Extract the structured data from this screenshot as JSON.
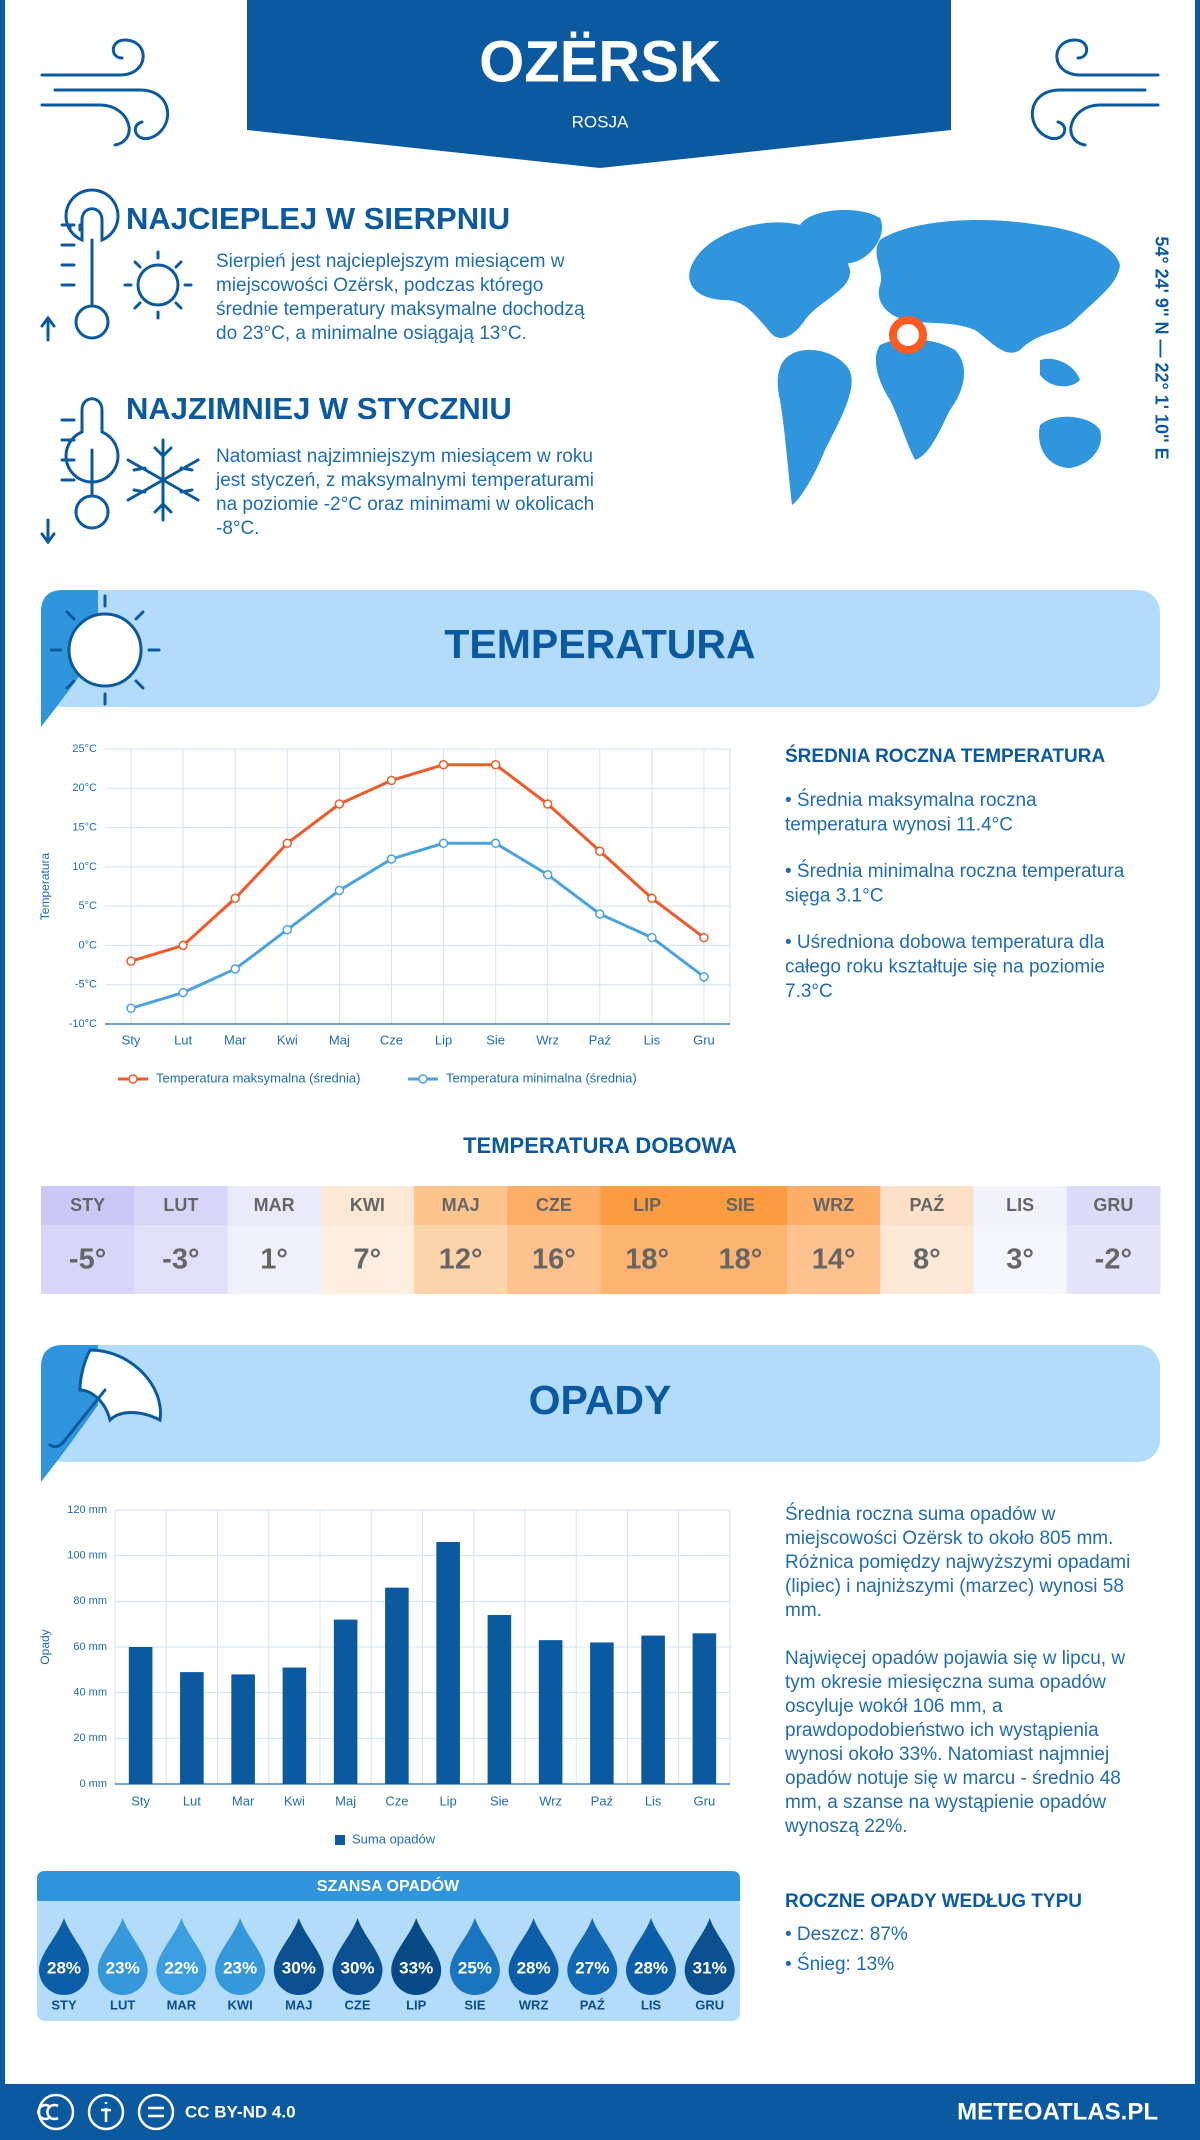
{
  "header": {
    "title": "OZËRSK",
    "subtitle": "ROSJA"
  },
  "coordinates": "54° 24' 9'' N — 22° 1' 10'' E",
  "warmest": {
    "title": "NAJCIEPLEJ W SIERPNIU",
    "text": [
      "Sierpień jest najcieplejszym miesiącem w",
      "miejscowości Ozërsk, podczas którego",
      "średnie temperatury maksymalne dochodzą",
      "do 23°C, a minimalne osiągają 13°C."
    ]
  },
  "coldest": {
    "title": "NAJZIMNIEJ W STYCZNIU",
    "text": [
      "Natomiast najzimniejszym miesiącem w roku",
      "jest styczeń, z maksymalnymi temperaturami",
      "na poziomie -2°C oraz minimami w okolicach",
      "-8°C."
    ]
  },
  "temperature_section": {
    "title": "TEMPERATURA",
    "summary_title": "ŚREDNIA ROCZNA TEMPERATURA",
    "bullets": [
      [
        "• Średnia maksymalna roczna",
        "temperatura wynosi 11.4°C"
      ],
      [
        "• Średnia minimalna roczna temperatura",
        "sięga 3.1°C"
      ],
      [
        "• Uśredniona dobowa temperatura dla",
        "całego roku kształtuje się na poziomie",
        "7.3°C"
      ]
    ]
  },
  "daily_temperature": {
    "title": "TEMPERATURA DOBOWA",
    "months": [
      "STY",
      "LUT",
      "MAR",
      "KWI",
      "MAJ",
      "CZE",
      "LIP",
      "SIE",
      "WRZ",
      "PAŹ",
      "LIS",
      "GRU"
    ],
    "values": [
      "-5°",
      "-3°",
      "1°",
      "7°",
      "12°",
      "16°",
      "18°",
      "18°",
      "14°",
      "8°",
      "3°",
      "-2°"
    ],
    "colors": [
      "#cbc8f6",
      "#d7d5f8",
      "#ebeafb",
      "#fde8d6",
      "#fdc58c",
      "#fdae68",
      "#fd9b40",
      "#fd9b40",
      "#fdae68",
      "#fde0c8",
      "#f2f2fb",
      "#dcdbf9"
    ]
  },
  "precipitation_section": {
    "title": "OPADY",
    "paragraphs": [
      [
        "Średnia roczna suma opadów w",
        "miejscowości Ozërsk to około 805 mm.",
        "Różnica pomiędzy najwyższymi opadami",
        "(lipiec) i najniższymi (marzec) wynosi 58",
        "mm."
      ],
      [
        "Najwięcej opadów pojawia się w lipcu, w",
        "tym okresie miesięczna suma opadów",
        "oscyluje wokół 106 mm, a",
        "prawdopodobieństwo ich wystąpienia",
        "wynosi około 33%. Natomiast najmniej",
        "opadów notuje się w marcu - średnio 48",
        "mm, a szanse na wystąpienie opadów",
        "wynoszą 22%."
      ]
    ],
    "type_title": "ROCZNE OPADY WEDŁUG TYPU",
    "types": [
      "• Deszcz: 87%",
      "• Śnieg: 13%"
    ]
  },
  "precipitation_chance": {
    "title": "SZANSA OPADÓW",
    "months": [
      "STY",
      "LUT",
      "MAR",
      "KWI",
      "MAJ",
      "CZE",
      "LIP",
      "SIE",
      "WRZ",
      "PAŹ",
      "LIS",
      "GRU"
    ],
    "values": [
      "28%",
      "23%",
      "22%",
      "23%",
      "30%",
      "30%",
      "33%",
      "25%",
      "28%",
      "27%",
      "28%",
      "31%"
    ],
    "colors": [
      "#0d5ea8",
      "#3498db",
      "#3a9ee0",
      "#3498db",
      "#0a4f90",
      "#0a4f90",
      "#074a87",
      "#1a75c0",
      "#0d5ea8",
      "#1368b3",
      "#0d5ea8",
      "#0a4f90"
    ]
  },
  "footer": {
    "license": "CC BY-ND 4.0",
    "site": "METEOATLAS.PL"
  },
  "chart_data": [
    {
      "type": "line",
      "categories": [
        "Sty",
        "Lut",
        "Mar",
        "Kwi",
        "Maj",
        "Cze",
        "Lip",
        "Sie",
        "Wrz",
        "Paź",
        "Lis",
        "Gru"
      ],
      "series": [
        {
          "name": "Temperatura maksymalna (średnia)",
          "color": "#f05a28",
          "values": [
            -2,
            0,
            6,
            13,
            18,
            21,
            23,
            23,
            18,
            12,
            6,
            1
          ]
        },
        {
          "name": "Temperatura minimalna (średnia)",
          "color": "#4aa3df",
          "values": [
            -8,
            -6,
            -3,
            2,
            7,
            11,
            13,
            13,
            9,
            4,
            1,
            -4
          ]
        }
      ],
      "ylabel": "Temperatura",
      "ylim": [
        -10,
        25
      ],
      "yticks": [
        {
          "value": -10,
          "label": "-10°C"
        },
        {
          "value": -5,
          "label": "-5°C"
        },
        {
          "value": 0,
          "label": "0°C"
        },
        {
          "value": 5,
          "label": "5°C"
        },
        {
          "value": 10,
          "label": "10°C"
        },
        {
          "value": 15,
          "label": "15°C"
        },
        {
          "value": 20,
          "label": "20°C"
        },
        {
          "value": 25,
          "label": "25°C"
        }
      ],
      "grid": true
    },
    {
      "type": "bar",
      "categories": [
        "Sty",
        "Lut",
        "Mar",
        "Kwi",
        "Maj",
        "Cze",
        "Lip",
        "Sie",
        "Wrz",
        "Paź",
        "Lis",
        "Gru"
      ],
      "series": [
        {
          "name": "Suma opadów",
          "color": "#0b5aa0",
          "values": [
            60,
            49,
            48,
            51,
            72,
            86,
            106,
            74,
            63,
            62,
            65,
            66
          ]
        }
      ],
      "ylabel": "Opady",
      "ylim": [
        0,
        120
      ],
      "yticks": [
        {
          "value": 0,
          "label": "0 mm"
        },
        {
          "value": 20,
          "label": "20 mm"
        },
        {
          "value": 40,
          "label": "40 mm"
        },
        {
          "value": 60,
          "label": "60 mm"
        },
        {
          "value": 80,
          "label": "80 mm"
        },
        {
          "value": 100,
          "label": "100 mm"
        },
        {
          "value": 120,
          "label": "120 mm"
        }
      ],
      "grid": true
    }
  ]
}
